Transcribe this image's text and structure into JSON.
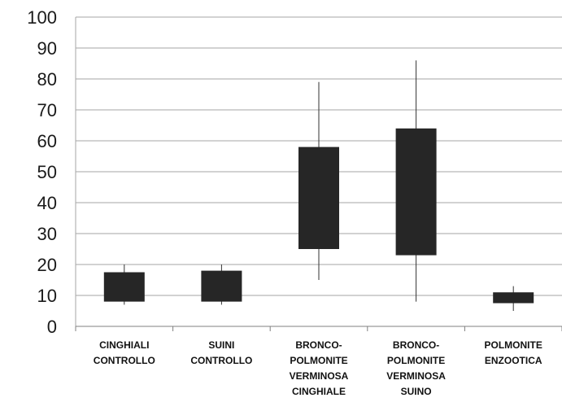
{
  "chart_data": {
    "type": "box",
    "title": "",
    "xlabel": "",
    "ylabel": "",
    "ylim": [
      0,
      100
    ],
    "yticks": [
      0,
      10,
      20,
      30,
      40,
      50,
      60,
      70,
      80,
      90,
      100
    ],
    "grid": true,
    "box_color": "#262626",
    "categories": [
      [
        "CINGHIALI",
        "CONTROLLO"
      ],
      [
        "SUINI",
        "CONTROLLO"
      ],
      [
        "BRONCO-",
        "POLMONITE",
        "VERMINOSA",
        "CINGHIALE"
      ],
      [
        "BRONCO-",
        "POLMONITE",
        "VERMINOSA",
        "SUINO"
      ],
      [
        "POLMONITE",
        "ENZOOTICA"
      ]
    ],
    "boxes": [
      {
        "min": 7,
        "q1": 8,
        "q3": 17.5,
        "max": 20
      },
      {
        "min": 7,
        "q1": 8,
        "q3": 18,
        "max": 20
      },
      {
        "min": 15,
        "q1": 25,
        "q3": 58,
        "max": 79
      },
      {
        "min": 8,
        "q1": 23,
        "q3": 64,
        "max": 86
      },
      {
        "min": 5,
        "q1": 7.5,
        "q3": 11,
        "max": 13
      }
    ]
  }
}
